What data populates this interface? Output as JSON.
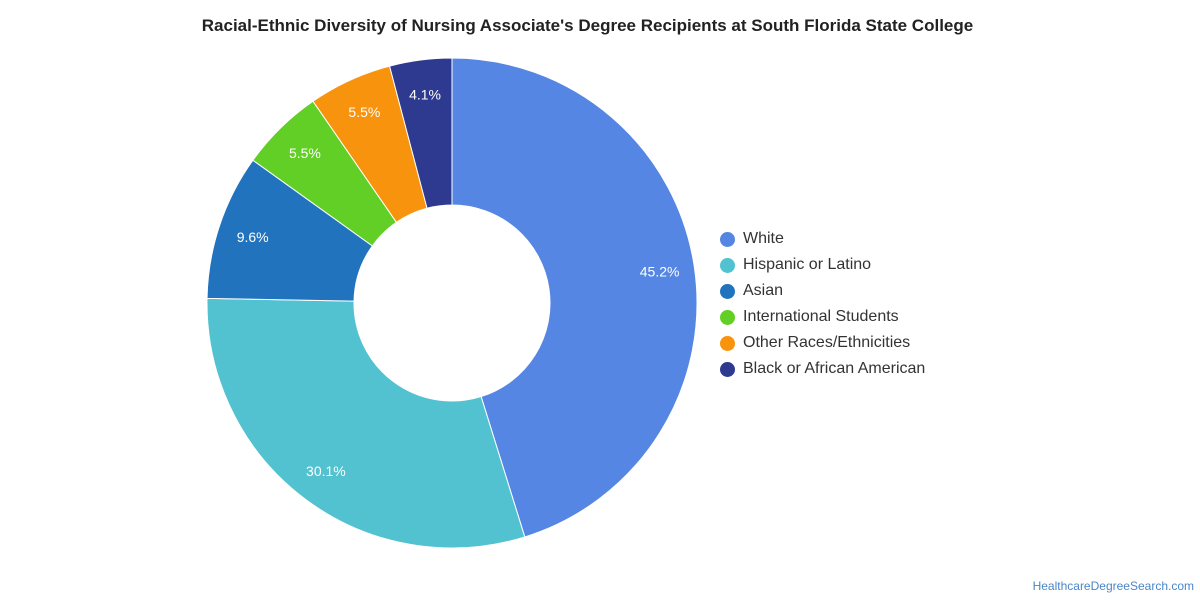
{
  "chart_data": {
    "type": "pie",
    "title": "Racial-Ethnic Diversity of Nursing Associate's Degree Recipients at South Florida State College",
    "donut": true,
    "legend_position": "right",
    "categories": [
      "White",
      "Hispanic or Latino",
      "Asian",
      "International Students",
      "Other Races/Ethnicities",
      "Black or African American"
    ],
    "values": [
      45.2,
      30.1,
      9.6,
      5.5,
      5.5,
      4.1
    ],
    "value_labels": [
      "45.2%",
      "30.1%",
      "9.6%",
      "5.5%",
      "5.5%",
      "4.1%"
    ],
    "colors": [
      "#5586e3",
      "#52c2d0",
      "#2173bd",
      "#62cf26",
      "#f7930d",
      "#2e3a8f"
    ]
  },
  "footer": {
    "source": "HealthcareDegreeSearch.com"
  }
}
